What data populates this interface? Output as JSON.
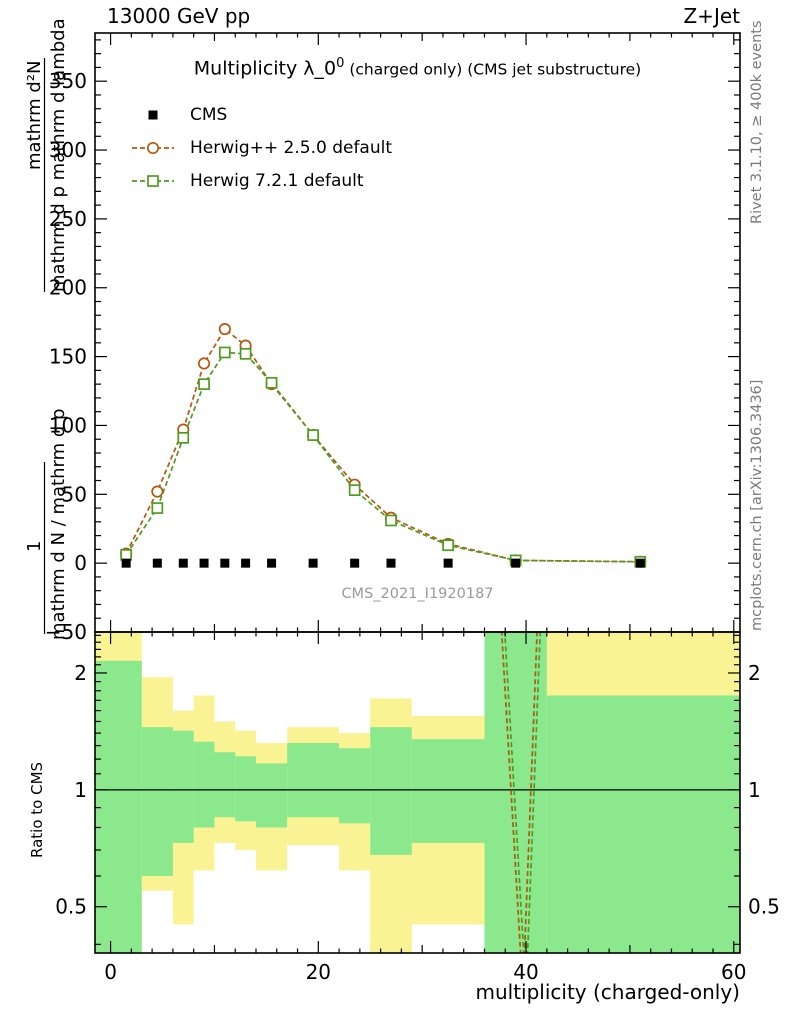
{
  "header": {
    "left": "13000 GeV pp",
    "right": "Z+Jet"
  },
  "title": {
    "prefix": "Multiplicity λ_0",
    "sup": "0",
    "suffix": " (charged only) (CMS jet substructure)"
  },
  "side_notes": {
    "rivet": "Rivet 3.1.10, ≥ 400k events",
    "mcplots": "mcplots.cern.ch [arXiv:1306.3436]"
  },
  "watermark": "CMS_2021_I1920187",
  "axis_labels": {
    "x": "multiplicity (charged-only)",
    "ratio_y": "Ratio to CMS",
    "y_numerator_1": "mathrm d²N",
    "y_denominator_1": "mathrm d p mathrm d lambda",
    "y_numerator_2": "1",
    "y_denominator_2": "mathrm d N / mathrm d p"
  },
  "legend": [
    {
      "label": "CMS",
      "marker": "square-filled",
      "color": "#000000",
      "dashed_line": false
    },
    {
      "label": "Herwig++ 2.5.0 default",
      "marker": "circle-open",
      "color": "#b5570f",
      "dashed_line": true
    },
    {
      "label": "Herwig 7.2.1 default",
      "marker": "square-open",
      "color": "#4f9b20",
      "dashed_line": true
    }
  ],
  "chart_data": [
    {
      "type": "line",
      "panel": "main",
      "xlim": [
        -1.5,
        60.6
      ],
      "ylim": [
        -50,
        385
      ],
      "xticks": [
        0,
        20,
        40,
        60
      ],
      "yticks": [
        -50,
        0,
        50,
        100,
        150,
        200,
        250,
        300,
        350
      ],
      "x": [
        1.5,
        4.5,
        7,
        9,
        11,
        13,
        15.5,
        19.5,
        23.5,
        27,
        32.5,
        39,
        51
      ],
      "series": [
        {
          "name": "CMS",
          "color": "#000000",
          "marker": "square-filled",
          "line": "none",
          "values": [
            0,
            0,
            0,
            0,
            0,
            0,
            0,
            0,
            0,
            0,
            0,
            0,
            0
          ]
        },
        {
          "name": "Herwig++ 2.5.0 default",
          "color": "#b5570f",
          "marker": "circle-open",
          "line": "dashed",
          "values": [
            7,
            52,
            97,
            145,
            170,
            158,
            130,
            93,
            57,
            33,
            14,
            2,
            1
          ]
        },
        {
          "name": "Herwig 7.2.1 default",
          "color": "#4f9b20",
          "marker": "square-open",
          "line": "dashed",
          "values": [
            6,
            40,
            91,
            130,
            153,
            152,
            131,
            93,
            53,
            31,
            13,
            2,
            1
          ]
        }
      ]
    },
    {
      "type": "ratio",
      "panel": "ratio",
      "yscale": "log",
      "xlim": [
        -1.5,
        60.6
      ],
      "ylim": [
        0.38,
        2.55
      ],
      "xticks": [
        0,
        20,
        40,
        60
      ],
      "yticks": [
        0.5,
        1,
        2
      ],
      "reference_line": 1,
      "band_colors": {
        "inner": "#8ce88c",
        "outer": "#faf394"
      },
      "bands": [
        {
          "x0": -1.5,
          "x1": 3,
          "yellow": [
            0.38,
            2.55
          ],
          "green": [
            0.38,
            2.15
          ]
        },
        {
          "x0": 3,
          "x1": 6,
          "yellow": [
            0.55,
            1.95
          ],
          "green": [
            0.6,
            1.45
          ]
        },
        {
          "x0": 6,
          "x1": 8,
          "yellow": [
            0.45,
            1.6
          ],
          "green": [
            0.73,
            1.42
          ]
        },
        {
          "x0": 8,
          "x1": 10,
          "yellow": [
            0.62,
            1.75
          ],
          "green": [
            0.8,
            1.33
          ]
        },
        {
          "x0": 10,
          "x1": 12,
          "yellow": [
            0.73,
            1.5
          ],
          "green": [
            0.85,
            1.25
          ]
        },
        {
          "x0": 12,
          "x1": 14,
          "yellow": [
            0.7,
            1.42
          ],
          "green": [
            0.83,
            1.22
          ]
        },
        {
          "x0": 14,
          "x1": 17,
          "yellow": [
            0.62,
            1.32
          ],
          "green": [
            0.8,
            1.17
          ]
        },
        {
          "x0": 17,
          "x1": 22,
          "yellow": [
            0.72,
            1.45
          ],
          "green": [
            0.85,
            1.32
          ]
        },
        {
          "x0": 22,
          "x1": 25,
          "yellow": [
            0.62,
            1.4
          ],
          "green": [
            0.82,
            1.28
          ]
        },
        {
          "x0": 25,
          "x1": 29,
          "yellow": [
            0.38,
            1.72
          ],
          "green": [
            0.68,
            1.45
          ]
        },
        {
          "x0": 29,
          "x1": 36,
          "yellow": [
            0.45,
            1.55
          ],
          "green": [
            0.73,
            1.35
          ]
        },
        {
          "x0": 36,
          "x1": 42,
          "yellow": [
            0.38,
            2.55
          ],
          "green": [
            0.38,
            2.55
          ]
        },
        {
          "x0": 42,
          "x1": 60.6,
          "yellow": [
            0.38,
            2.55
          ],
          "green": [
            0.38,
            1.75
          ]
        }
      ],
      "curves": [
        {
          "name": "Herwig++ 2.5.0 default",
          "color": "#b5570f",
          "points": [
            [
              37.6,
              2.7
            ],
            [
              39.7,
              0.3
            ],
            [
              41.1,
              2.7
            ]
          ]
        },
        {
          "name": "Herwig 7.2.1 default",
          "color": "#4f9b20",
          "points": [
            [
              37.9,
              2.7
            ],
            [
              40.0,
              0.3
            ],
            [
              41.4,
              2.7
            ]
          ]
        }
      ]
    }
  ]
}
